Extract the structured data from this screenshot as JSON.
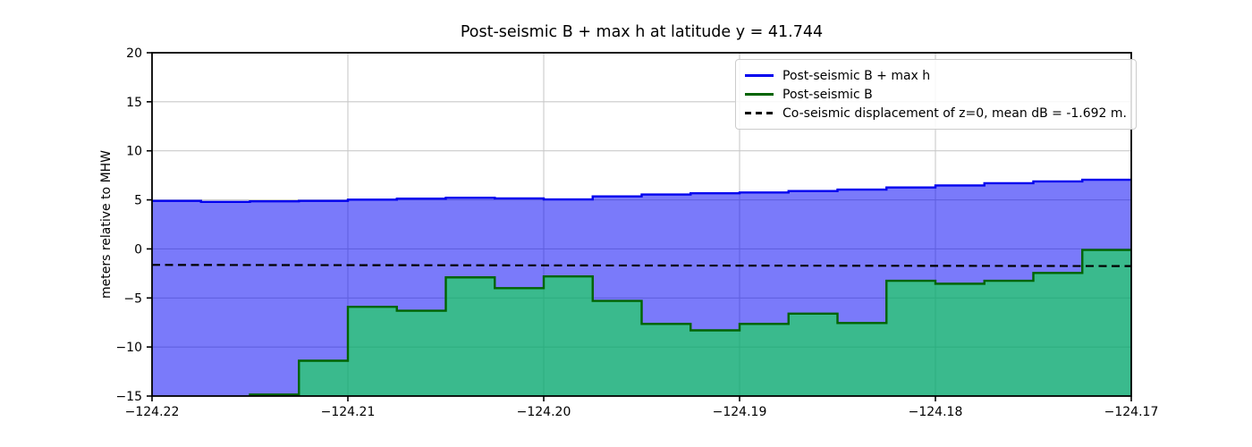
{
  "chart_data": {
    "type": "area",
    "title": "Post-seismic B + max h at latitude y = 41.744",
    "xlabel": "",
    "ylabel": "meters relative to MHW",
    "xlim": [
      -124.22,
      -124.17
    ],
    "ylim": [
      -15,
      20
    ],
    "grid": true,
    "legend_position": "upper right",
    "xticks": [
      {
        "value": -124.22,
        "label": "−124.22"
      },
      {
        "value": -124.21,
        "label": "−124.21"
      },
      {
        "value": -124.2,
        "label": "−124.20"
      },
      {
        "value": -124.19,
        "label": "−124.19"
      },
      {
        "value": -124.18,
        "label": "−124.18"
      },
      {
        "value": -124.17,
        "label": "−124.17"
      }
    ],
    "yticks": [
      {
        "value": -15,
        "label": "−15"
      },
      {
        "value": -10,
        "label": "−10"
      },
      {
        "value": -5,
        "label": "−5"
      },
      {
        "value": 0,
        "label": "0"
      },
      {
        "value": 5,
        "label": "5"
      },
      {
        "value": 10,
        "label": "10"
      },
      {
        "value": 15,
        "label": "15"
      },
      {
        "value": 20,
        "label": "20"
      }
    ],
    "x_edges": [
      -124.22,
      -124.2175,
      -124.215,
      -124.2125,
      -124.21,
      -124.2075,
      -124.205,
      -124.2025,
      -124.2,
      -124.1975,
      -124.195,
      -124.1925,
      -124.19,
      -124.1875,
      -124.185,
      -124.1825,
      -124.18,
      -124.1775,
      -124.175,
      -124.1725,
      -124.17
    ],
    "series": [
      {
        "name": "Post-seismic B + max h",
        "kind": "step-area",
        "line_color": "#0000ee",
        "fill_color": "rgba(0,0,245,0.52)",
        "values": [
          4.9,
          4.8,
          4.85,
          4.9,
          5.02,
          5.12,
          5.22,
          5.15,
          5.05,
          5.35,
          5.55,
          5.67,
          5.75,
          5.9,
          6.05,
          6.27,
          6.47,
          6.7,
          6.88,
          7.05
        ]
      },
      {
        "name": "Post-seismic B",
        "kind": "step-area",
        "line_color": "#006400",
        "fill_color": "rgba(0,245,40,0.52)",
        "values": [
          -16,
          -16,
          -14.85,
          -11.4,
          -5.9,
          -6.3,
          -2.9,
          -4.0,
          -2.8,
          -5.3,
          -7.65,
          -8.3,
          -7.65,
          -6.6,
          -7.55,
          -3.25,
          -3.55,
          -3.25,
          -2.45,
          -0.1
        ]
      },
      {
        "name": "Co-seismic displacement of z=0, mean dB = -1.692 m.",
        "kind": "dashed-line",
        "line_color": "#000000",
        "x": [
          -124.22,
          -124.17
        ],
        "y": [
          -1.63,
          -1.75
        ]
      }
    ]
  }
}
